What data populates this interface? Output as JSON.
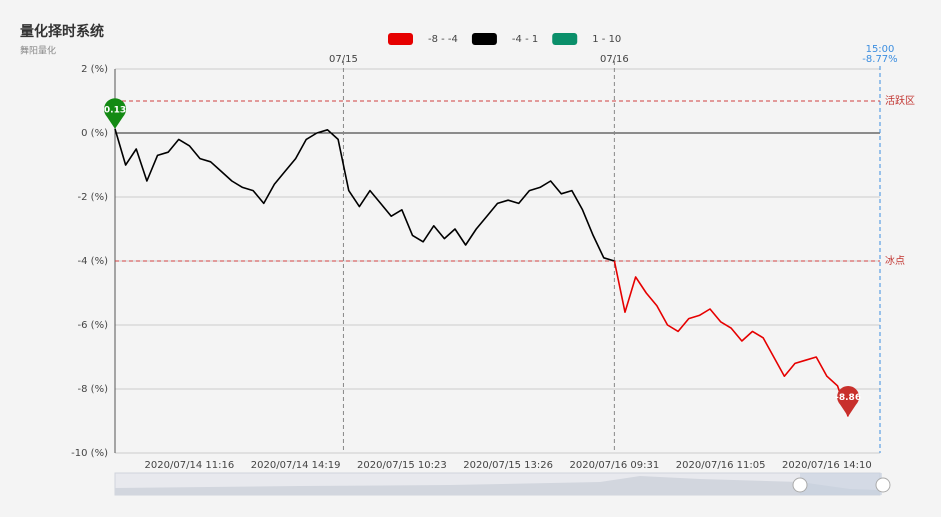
{
  "chart_data": {
    "type": "line",
    "title": "量化择时系统",
    "subtitle": "舞阳量化",
    "legend": [
      {
        "name": "-8 - -4",
        "color": "#e60000"
      },
      {
        "name": "-4 - 1",
        "color": "#000000"
      },
      {
        "name": "1 - 10",
        "color": "#0a8f6a"
      }
    ],
    "x": [
      null,
      null,
      null,
      null,
      null,
      null,
      null,
      "2020/07/14 11:16",
      null,
      null,
      null,
      null,
      null,
      null,
      null,
      null,
      null,
      "2020/07/14 14:19",
      null,
      null,
      null,
      null,
      null,
      null,
      null,
      null,
      null,
      "2020/07/15 10:23",
      null,
      null,
      null,
      null,
      null,
      null,
      null,
      null,
      null,
      "2020/07/15 13:26",
      null,
      null,
      null,
      null,
      null,
      null,
      null,
      null,
      null,
      "2020/07/16 09:31",
      null,
      null,
      null,
      null,
      null,
      null,
      null,
      null,
      null,
      "2020/07/16 11:05",
      null,
      null,
      null,
      null,
      null,
      null,
      null,
      null,
      null,
      "2020/07/16 14:10",
      null,
      null,
      null,
      null,
      null
    ],
    "series": [
      {
        "name": "-4 - 1",
        "values": [
          0.13,
          -1.0,
          -0.5,
          -1.5,
          -0.7,
          -0.6,
          -0.2,
          -0.4,
          -0.8,
          -0.9,
          -1.2,
          -1.5,
          -1.7,
          -1.8,
          -2.2,
          -1.6,
          -1.2,
          -0.8,
          -0.2,
          0.0,
          0.1,
          -0.2,
          -1.8,
          -2.3,
          -1.8,
          -2.2,
          -2.6,
          -2.4,
          -3.2,
          -3.4,
          -2.9,
          -3.3,
          -3.0,
          -3.5,
          -3.0,
          -2.6,
          -2.2,
          -2.1,
          -2.2,
          -1.8,
          -1.7,
          -1.5,
          -1.9,
          -1.8,
          -2.4,
          -3.2,
          -3.9,
          -4.0,
          -5.6,
          -4.5,
          -5.0,
          -5.4,
          -6.0,
          -6.2,
          -5.8,
          -5.7,
          -5.5,
          -5.9,
          -6.1,
          -6.5,
          -6.2,
          -6.4,
          -7.0,
          -7.6,
          -7.2,
          -7.1,
          -7.0,
          -7.6,
          -7.9,
          -8.86,
          null,
          null,
          null
        ]
      }
    ],
    "pieces": [
      {
        "min": -8,
        "max": -4,
        "color": "#e60000"
      },
      {
        "min": -4,
        "max": 1,
        "color": "#000000"
      },
      {
        "min": 1,
        "max": 10,
        "color": "#0a8f6a"
      }
    ],
    "ylim": [
      -10,
      2
    ],
    "yticks": [
      {
        "value": -10,
        "label": "-10 (%)"
      },
      {
        "value": -8,
        "label": "-8 (%)"
      },
      {
        "value": -6,
        "label": "-6 (%)"
      },
      {
        "value": -4,
        "label": "-4 (%)"
      },
      {
        "value": -2,
        "label": "-2 (%)"
      },
      {
        "value": 0,
        "label": "0 (%)"
      },
      {
        "value": 2,
        "label": "2 (%)"
      }
    ],
    "grid": true,
    "hlines": [
      {
        "value": 1,
        "label": "活跃区"
      },
      {
        "value": -4,
        "label": "冰点"
      }
    ],
    "day_lines": [
      {
        "x": 21.5,
        "label": "07/15"
      },
      {
        "x": 47,
        "label": "07/16"
      }
    ],
    "end_line": {
      "x": 72,
      "time": "15:00",
      "change": "-8.77%"
    },
    "markers": [
      {
        "x": 0,
        "value": 0.13,
        "color": "#138a13"
      },
      {
        "x": 69,
        "value": -8.86,
        "color": "#c8302c"
      }
    ]
  }
}
